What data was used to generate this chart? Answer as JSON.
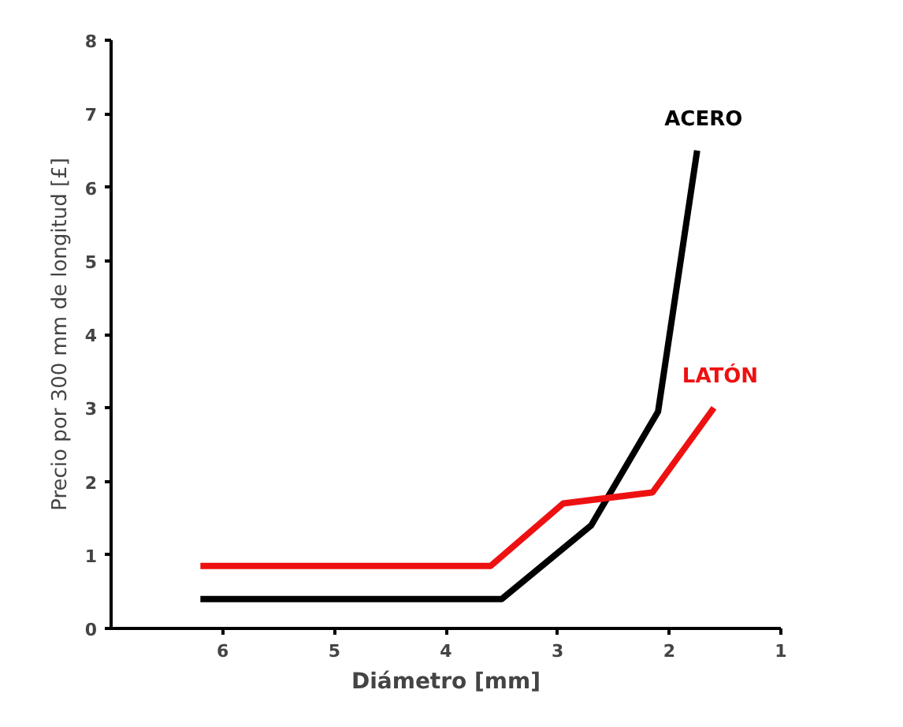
{
  "chart_data": {
    "type": "line",
    "xlabel": "Diámetro [mm]",
    "ylabel": "Precio por 300 mm de longitud [£]",
    "xlim": [
      7,
      1
    ],
    "ylim": [
      0,
      8
    ],
    "xticks": [
      6,
      5,
      4,
      3,
      2,
      1
    ],
    "yticks": [
      0,
      1,
      2,
      3,
      4,
      5,
      6,
      7,
      8
    ],
    "grid": false,
    "marker": "none",
    "line_style": "solid",
    "series": [
      {
        "name": "ACERO",
        "color": "#000000",
        "x": [
          6.2,
          3.5,
          2.7,
          2.1,
          1.75
        ],
        "values": [
          0.4,
          0.4,
          1.4,
          2.95,
          6.5
        ]
      },
      {
        "name": "LATÓN",
        "color": "#ee1111",
        "x": [
          6.2,
          3.6,
          2.95,
          2.15,
          1.6
        ],
        "values": [
          0.85,
          0.85,
          1.7,
          1.85,
          3.0
        ]
      }
    ]
  }
}
